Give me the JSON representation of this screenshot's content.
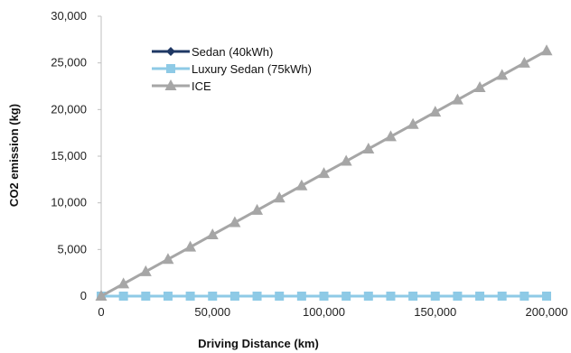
{
  "chart_data": {
    "type": "line",
    "title": "",
    "xlabel": "Driving  Distance (km)",
    "ylabel": "CO2 emission (kg)",
    "xlim": [
      0,
      200000
    ],
    "ylim": [
      0,
      30000
    ],
    "x_ticks": [
      "0",
      "50,000",
      "100,000",
      "150,000",
      "200,000"
    ],
    "y_ticks": [
      "0",
      "5,000",
      "10,000",
      "15,000",
      "20,000",
      "25,000",
      "30,000"
    ],
    "grid": false,
    "legend_position": "top-left",
    "x": [
      0,
      10000,
      20000,
      30000,
      40000,
      50000,
      60000,
      70000,
      80000,
      90000,
      100000,
      110000,
      120000,
      130000,
      140000,
      150000,
      160000,
      170000,
      180000,
      190000,
      200000
    ],
    "series": [
      {
        "name": "Sedan (40kWh)",
        "marker": "diamond",
        "color": "#1f3864",
        "values": [
          0,
          0,
          0,
          0,
          0,
          0,
          0,
          0,
          0,
          0,
          0,
          0,
          0,
          0,
          0,
          0,
          0,
          0,
          0,
          0,
          0
        ]
      },
      {
        "name": "Luxury Sedan (75kWh)",
        "marker": "square",
        "color": "#8ecae6",
        "values": [
          0,
          0,
          0,
          0,
          0,
          0,
          0,
          0,
          0,
          0,
          0,
          0,
          0,
          0,
          0,
          0,
          0,
          0,
          0,
          0,
          0
        ]
      },
      {
        "name": "ICE",
        "marker": "triangle",
        "color": "#a6a6a6",
        "values": [
          0,
          1315,
          2630,
          3945,
          5260,
          6575,
          7890,
          9205,
          10520,
          11835,
          13150,
          14465,
          15780,
          17095,
          18410,
          19725,
          21040,
          22355,
          23670,
          24985,
          26300
        ]
      }
    ]
  }
}
